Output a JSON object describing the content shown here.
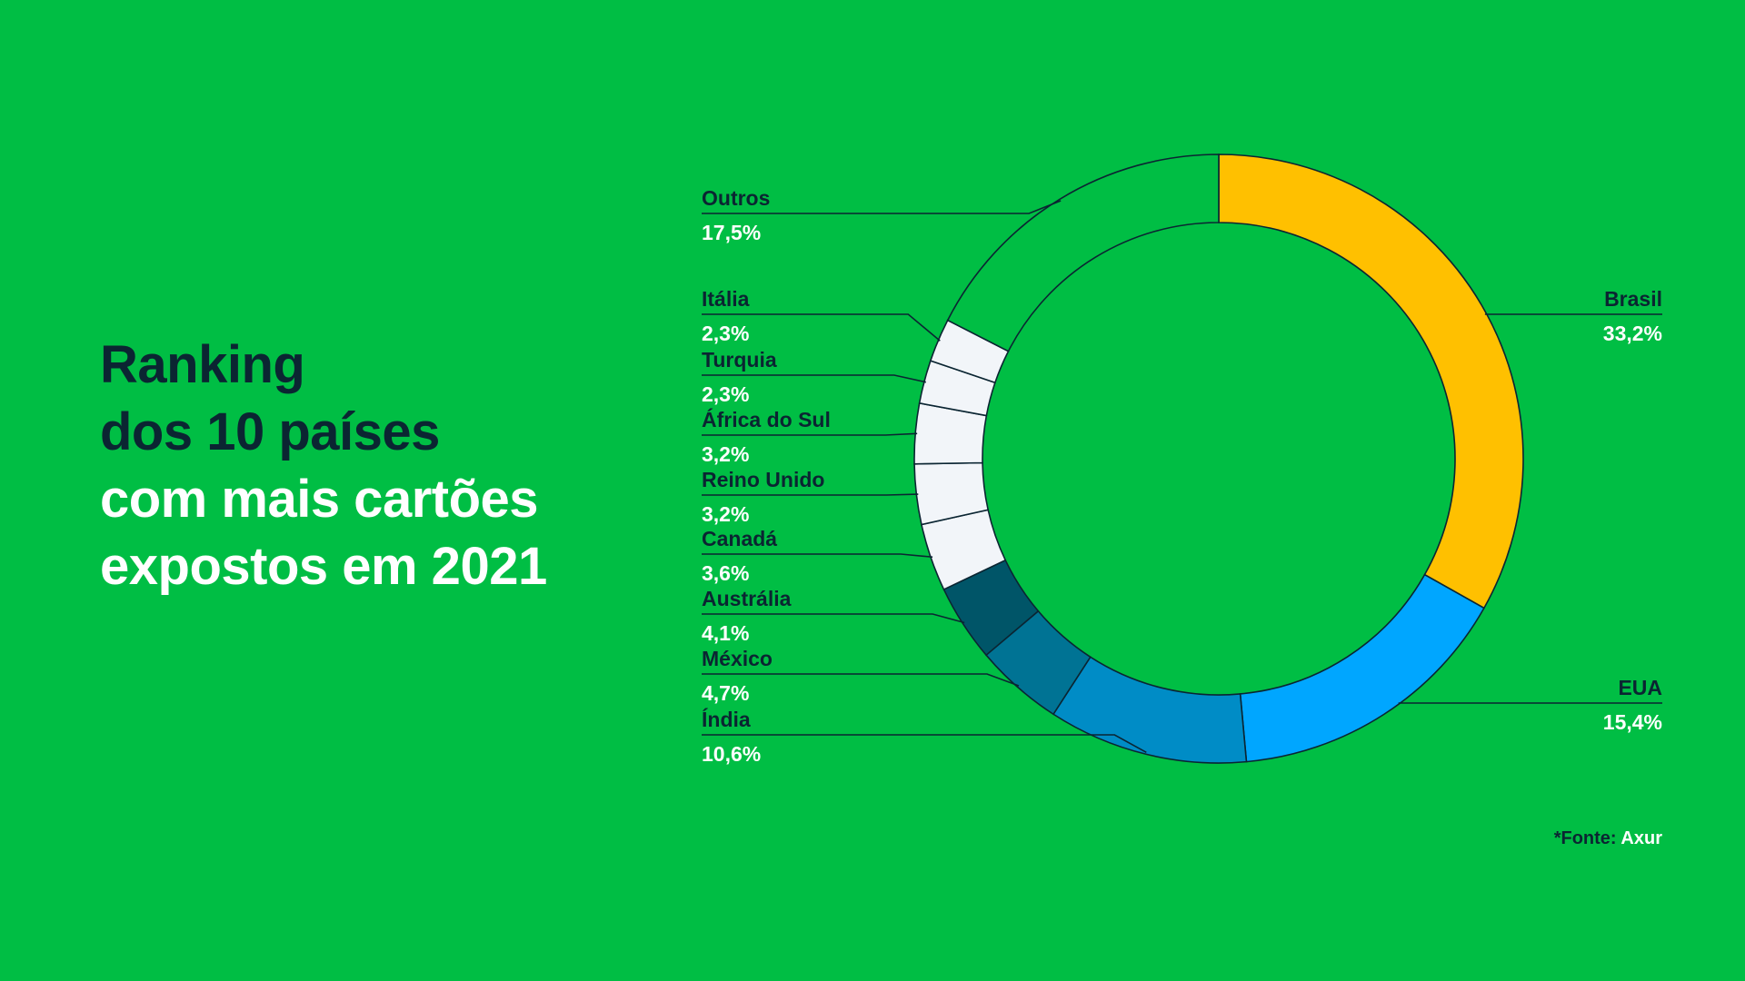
{
  "title": {
    "lines_dark": [
      "Ranking",
      "dos 10 países"
    ],
    "lines_light": [
      "com mais cartões",
      "expostos em 2021"
    ]
  },
  "source": {
    "label": "*Fonte:",
    "value": "Axur"
  },
  "colors": {
    "background": "#00BE44",
    "dark_text": "#0B2532",
    "light_text": "#FFFFFF"
  },
  "chart_data": {
    "type": "pie",
    "variant": "donut",
    "title": "",
    "slices": [
      {
        "label": "Brasil",
        "value": 33.2,
        "display": "33,2%",
        "color": "#FFC000"
      },
      {
        "label": "EUA",
        "value": 15.4,
        "display": "15,4%",
        "color": "#00A6FF"
      },
      {
        "label": "Índia",
        "value": 10.6,
        "display": "10,6%",
        "color": "#008CC6"
      },
      {
        "label": "México",
        "value": 4.7,
        "display": "4,7%",
        "color": "#007394"
      },
      {
        "label": "Austrália",
        "value": 4.1,
        "display": "4,1%",
        "color": "#005568"
      },
      {
        "label": "Canadá",
        "value": 3.6,
        "display": "3,6%",
        "color": "#F2F5F9"
      },
      {
        "label": "Reino Unido",
        "value": 3.2,
        "display": "3,2%",
        "color": "#F2F5F9"
      },
      {
        "label": "África do Sul",
        "value": 3.2,
        "display": "3,2%",
        "color": "#F2F5F9"
      },
      {
        "label": "Turquia",
        "value": 2.3,
        "display": "2,3%",
        "color": "#F2F5F9"
      },
      {
        "label": "Itália",
        "value": 2.3,
        "display": "2,3%",
        "color": "#F2F5F9"
      },
      {
        "label": "Outros",
        "value": 17.5,
        "display": "17,5%",
        "color": "#00BE44"
      }
    ],
    "legend": "callout-labels"
  }
}
